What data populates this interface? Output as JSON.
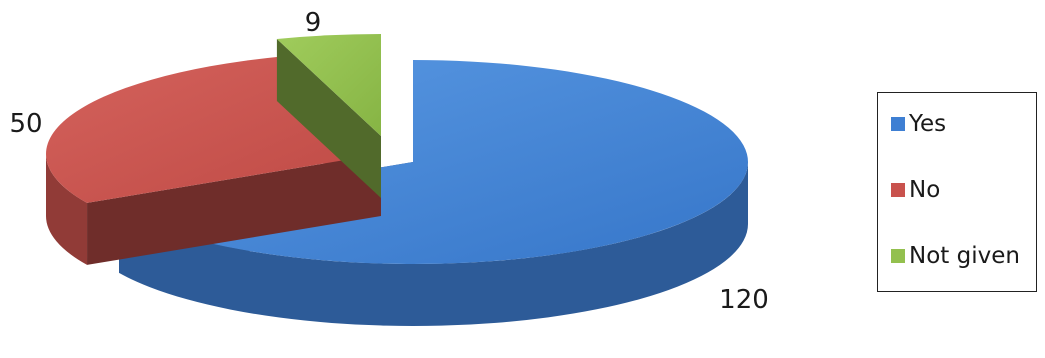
{
  "chart_data": {
    "type": "pie",
    "style": "3d-exploded",
    "categories": [
      "Yes",
      "No",
      "Not given"
    ],
    "values": [
      120,
      50,
      9
    ],
    "data_labels": [
      "120",
      "50",
      "9"
    ],
    "colors": [
      "#3e7fd3",
      "#c9524d",
      "#93c04e"
    ],
    "legend": {
      "position": "right",
      "items": [
        "Yes",
        "No",
        "Not given"
      ]
    }
  }
}
